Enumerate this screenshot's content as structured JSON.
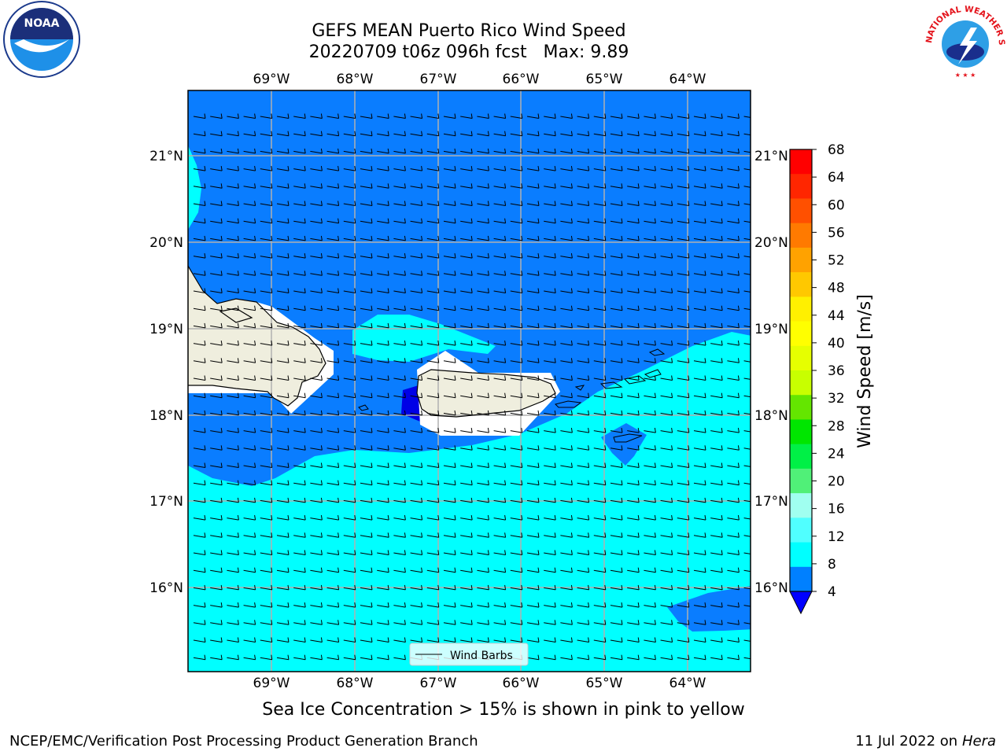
{
  "title_line1": "GEFS MEAN Puerto Rico Wind Speed",
  "title_line2": "20220709 t06z 096h fcst   Max: 9.89",
  "caption": "Sea Ice Concentration > 15% is shown in pink to yellow",
  "credit_left": "NCEP/EMC/Verification Post Processing Product Generation Branch",
  "credit_right_date": "11 Jul 2022 on ",
  "credit_right_host": "Hera",
  "legend_label": "Wind Barbs",
  "logos": {
    "left": "NOAA",
    "right_text": "NATIONAL WEATHER SERVICE"
  },
  "lon_labels": [
    "69°W",
    "68°W",
    "67°W",
    "66°W",
    "65°W",
    "64°W"
  ],
  "lat_labels": [
    "21°N",
    "20°N",
    "19°N",
    "18°N",
    "17°N",
    "16°N"
  ],
  "colorbar": {
    "label": "Wind Speed [m/s]",
    "ticks": [
      "68",
      "64",
      "60",
      "56",
      "52",
      "48",
      "44",
      "40",
      "36",
      "32",
      "28",
      "24",
      "20",
      "16",
      "12",
      "8",
      "4"
    ],
    "colors": [
      "#ff0000",
      "#ff2600",
      "#ff5000",
      "#ff7a00",
      "#ffa200",
      "#ffc800",
      "#fff000",
      "#ffff00",
      "#e6ff00",
      "#c8ff00",
      "#64e600",
      "#00e600",
      "#00f046",
      "#50f078",
      "#a0fff0",
      "#50ffff",
      "#00ffff",
      "#0080ff"
    ],
    "under_color": "#0000ff"
  },
  "colors": {
    "ocean_low": "#0a7dff",
    "ocean_mid": "#00ffff",
    "land": "#efeede",
    "calm": "#0000e6"
  }
}
